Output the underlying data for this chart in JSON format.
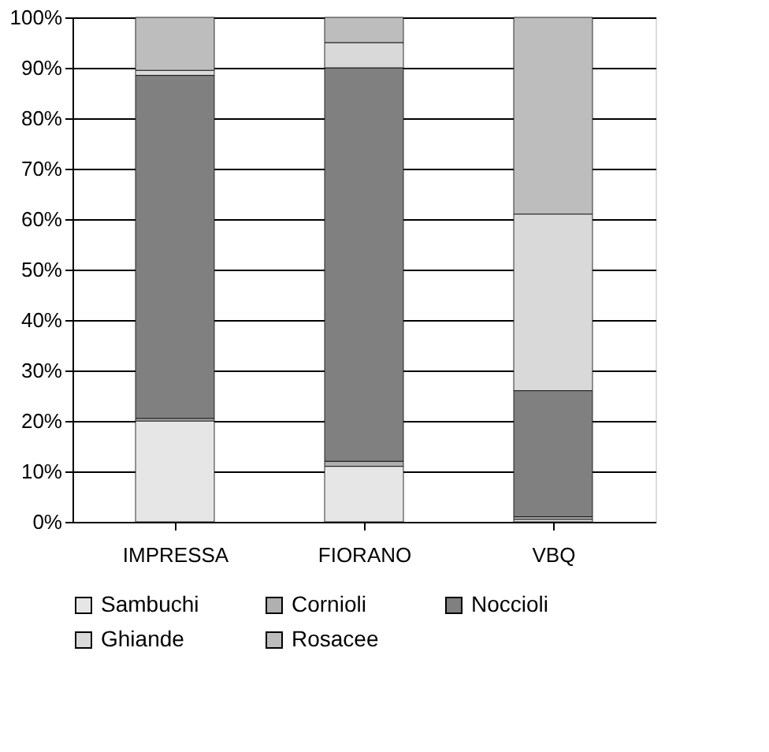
{
  "chart_data": {
    "type": "bar",
    "stacked": true,
    "categories": [
      "IMPRESSA",
      "FIORANO",
      "VBQ"
    ],
    "series": [
      {
        "name": "Sambuchi",
        "color": "#e6e6e6",
        "values": [
          20,
          11,
          0.5
        ]
      },
      {
        "name": "Cornioli",
        "color": "#b0b0b0",
        "values": [
          0.5,
          1,
          0.5
        ]
      },
      {
        "name": "Noccioli",
        "color": "#808080",
        "values": [
          68,
          78,
          25
        ]
      },
      {
        "name": "Ghiande",
        "color": "#d9d9d9",
        "values": [
          1,
          5,
          35
        ]
      },
      {
        "name": "Rosacee",
        "color": "#bdbdbd",
        "values": [
          10.5,
          5,
          39
        ]
      }
    ],
    "ylim": [
      0,
      100
    ],
    "yticks": [
      {
        "value": 0,
        "label": "0%"
      },
      {
        "value": 10,
        "label": "10%"
      },
      {
        "value": 20,
        "label": "20%"
      },
      {
        "value": 30,
        "label": "30%"
      },
      {
        "value": 40,
        "label": "40%"
      },
      {
        "value": 50,
        "label": "50%"
      },
      {
        "value": 60,
        "label": "60%"
      },
      {
        "value": 70,
        "label": "70%"
      },
      {
        "value": 80,
        "label": "80%"
      },
      {
        "value": 90,
        "label": "90%"
      },
      {
        "value": 100,
        "label": "100%"
      }
    ],
    "grid": "y",
    "legend": "bottom"
  }
}
